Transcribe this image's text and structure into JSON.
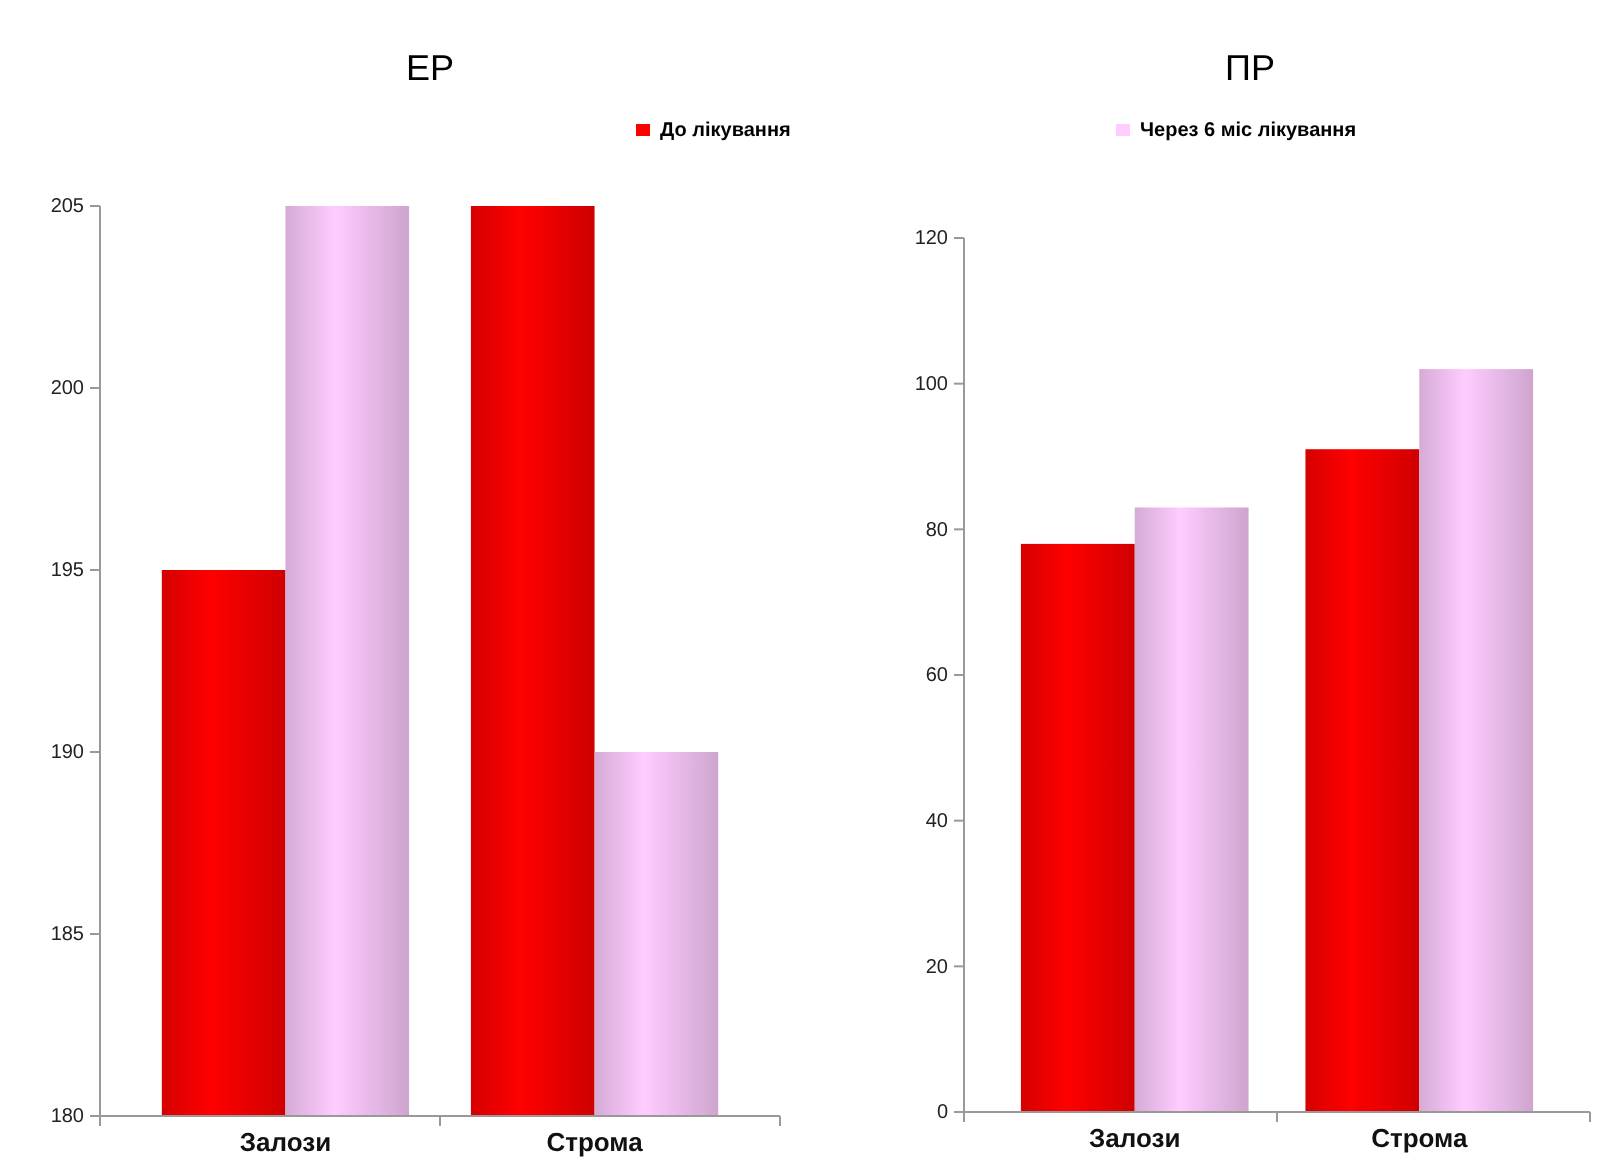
{
  "chart_data": [
    {
      "type": "bar",
      "title": "ЕР",
      "categories": [
        "Залози",
        "Строма"
      ],
      "series": [
        {
          "name": "До лікування",
          "color": "#ff0000",
          "values": [
            195,
            205
          ]
        },
        {
          "name": "Через 6 міс лікування",
          "color": "#ffccff",
          "values": [
            205,
            190
          ]
        }
      ],
      "ylim": [
        180,
        205
      ],
      "yticks": [
        180,
        185,
        190,
        195,
        200,
        205
      ],
      "grid": false,
      "legend": "top"
    },
    {
      "type": "bar",
      "title": "ПР",
      "categories": [
        "Залози",
        "Строма"
      ],
      "series": [
        {
          "color": "#ff0000",
          "values": [
            78,
            91
          ]
        },
        {
          "color": "#ffccff",
          "values": [
            83,
            102
          ]
        }
      ],
      "ylim": [
        0,
        120
      ],
      "yticks": [
        0,
        20,
        40,
        60,
        80,
        100,
        120
      ],
      "grid": false
    }
  ]
}
